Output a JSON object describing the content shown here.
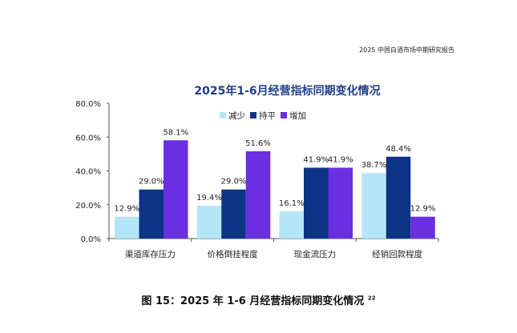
{
  "header": {
    "report_title": "2025 中国白酒市场中期研究报告"
  },
  "caption": {
    "text": "图 15：2025 年 1-6 月经营指标同期变化情况",
    "footnote": "22"
  },
  "chart_data": {
    "type": "bar",
    "title": "2025年1-6月经营指标同期变化情况",
    "categories": [
      "渠道库存压力",
      "价格倒挂程度",
      "现金流压力",
      "经销回款程度"
    ],
    "series": [
      {
        "name": "减少",
        "color": "#b5e6f8",
        "values": [
          12.9,
          19.4,
          16.1,
          38.7
        ]
      },
      {
        "name": "持平",
        "color": "#0d3385",
        "values": [
          29.0,
          29.0,
          41.9,
          48.4
        ]
      },
      {
        "name": "增加",
        "color": "#6a2fe0",
        "values": [
          58.1,
          51.6,
          41.9,
          12.9
        ]
      }
    ],
    "ylim": [
      0,
      80
    ],
    "yticks": [
      "0.0%",
      "20.0%",
      "40.0%",
      "60.0%",
      "80.0%"
    ],
    "ytick_values": [
      0,
      20,
      40,
      60,
      80
    ],
    "value_suffix": "%",
    "legend": "top-center",
    "grid": false,
    "title_color": "#1f3f86"
  }
}
